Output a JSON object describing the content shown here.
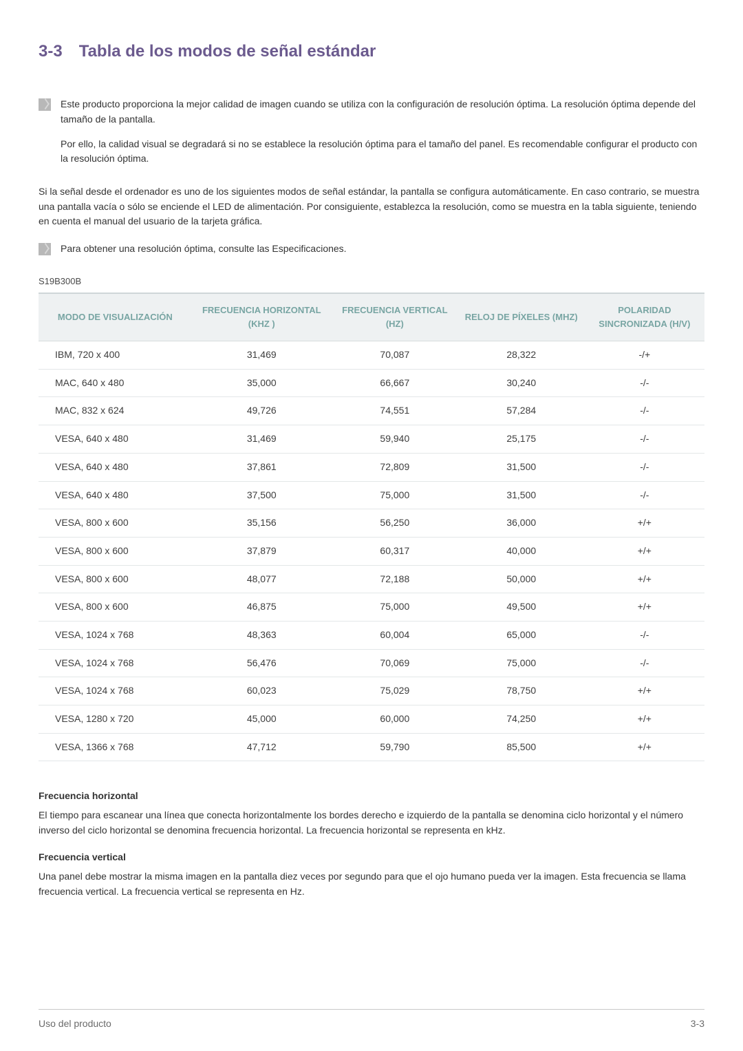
{
  "heading": {
    "number": "3-3",
    "title": "Tabla de los modos de señal estándar"
  },
  "note1": {
    "p1": "Este producto proporciona la mejor calidad de imagen cuando se utiliza con la configuración de resolución óptima. La resolución óptima depende del tamaño de la pantalla.",
    "p2": "Por ello, la calidad visual se degradará si no se establece la resolución óptima para el tamaño del panel. Es recomendable configurar el producto con la resolución óptima."
  },
  "body_para": "Si la señal desde el ordenador es uno de los siguientes modos de señal estándar, la pantalla se configura automáticamente. En caso contrario, se muestra una pantalla vacía o sólo se enciende el LED de alimentación. Por consiguiente, establezca la resolución, como se muestra en la tabla siguiente, teniendo en cuenta el manual del usuario de la tarjeta gráfica.",
  "note2": "Para obtener una resolución óptima, consulte las Especificaciones.",
  "model": "S19B300B",
  "table": {
    "columns": [
      "MODO DE VISUALIZACIÓN",
      "FRECUENCIA HORIZONTAL (KHZ )",
      "FRECUENCIA VERTICAL (HZ)",
      "RELOJ DE PÍXELES (MHZ)",
      "POLARIDAD SINCRONIZADA (H/V)"
    ],
    "col_widths": [
      "23%",
      "21%",
      "19%",
      "19%",
      "18%"
    ],
    "header_bg": "#eef1f2",
    "header_color": "#78a5a3",
    "border_color": "#e3e7e8",
    "rows": [
      [
        "IBM, 720 x 400",
        "31,469",
        "70,087",
        "28,322",
        "-/+"
      ],
      [
        "MAC, 640 x 480",
        "35,000",
        "66,667",
        "30,240",
        "-/-"
      ],
      [
        "MAC, 832 x 624",
        "49,726",
        "74,551",
        "57,284",
        "-/-"
      ],
      [
        "VESA, 640 x 480",
        "31,469",
        "59,940",
        "25,175",
        "-/-"
      ],
      [
        "VESA, 640 x 480",
        "37,861",
        "72,809",
        "31,500",
        "-/-"
      ],
      [
        "VESA, 640 x 480",
        "37,500",
        "75,000",
        "31,500",
        "-/-"
      ],
      [
        "VESA, 800 x 600",
        "35,156",
        "56,250",
        "36,000",
        "+/+"
      ],
      [
        "VESA, 800 x 600",
        "37,879",
        "60,317",
        "40,000",
        "+/+"
      ],
      [
        "VESA, 800 x 600",
        "48,077",
        "72,188",
        "50,000",
        "+/+"
      ],
      [
        "VESA, 800 x 600",
        "46,875",
        "75,000",
        "49,500",
        "+/+"
      ],
      [
        "VESA, 1024 x 768",
        "48,363",
        "60,004",
        "65,000",
        "-/-"
      ],
      [
        "VESA, 1024 x 768",
        "56,476",
        "70,069",
        "75,000",
        "-/-"
      ],
      [
        "VESA, 1024 x 768",
        "60,023",
        "75,029",
        "78,750",
        "+/+"
      ],
      [
        "VESA, 1280 x 720",
        "45,000",
        "60,000",
        "74,250",
        "+/+"
      ],
      [
        "VESA, 1366 x 768",
        "47,712",
        "59,790",
        "85,500",
        "+/+"
      ]
    ]
  },
  "defs": {
    "h_term": "Frecuencia horizontal",
    "h_text": "El tiempo para escanear una línea que conecta horizontalmente los bordes derecho e izquierdo de la pantalla se denomina ciclo horizontal y el número inverso del ciclo horizontal se denomina frecuencia horizontal. La frecuencia horizontal se representa en kHz.",
    "v_term": "Frecuencia vertical",
    "v_text": "Una panel debe mostrar la misma imagen en la pantalla diez veces por segundo para que el ojo humano pueda ver la imagen. Esta frecuencia se llama frecuencia vertical. La frecuencia vertical se representa en Hz."
  },
  "footer": {
    "left": "Uso del producto",
    "right": "3-3"
  }
}
